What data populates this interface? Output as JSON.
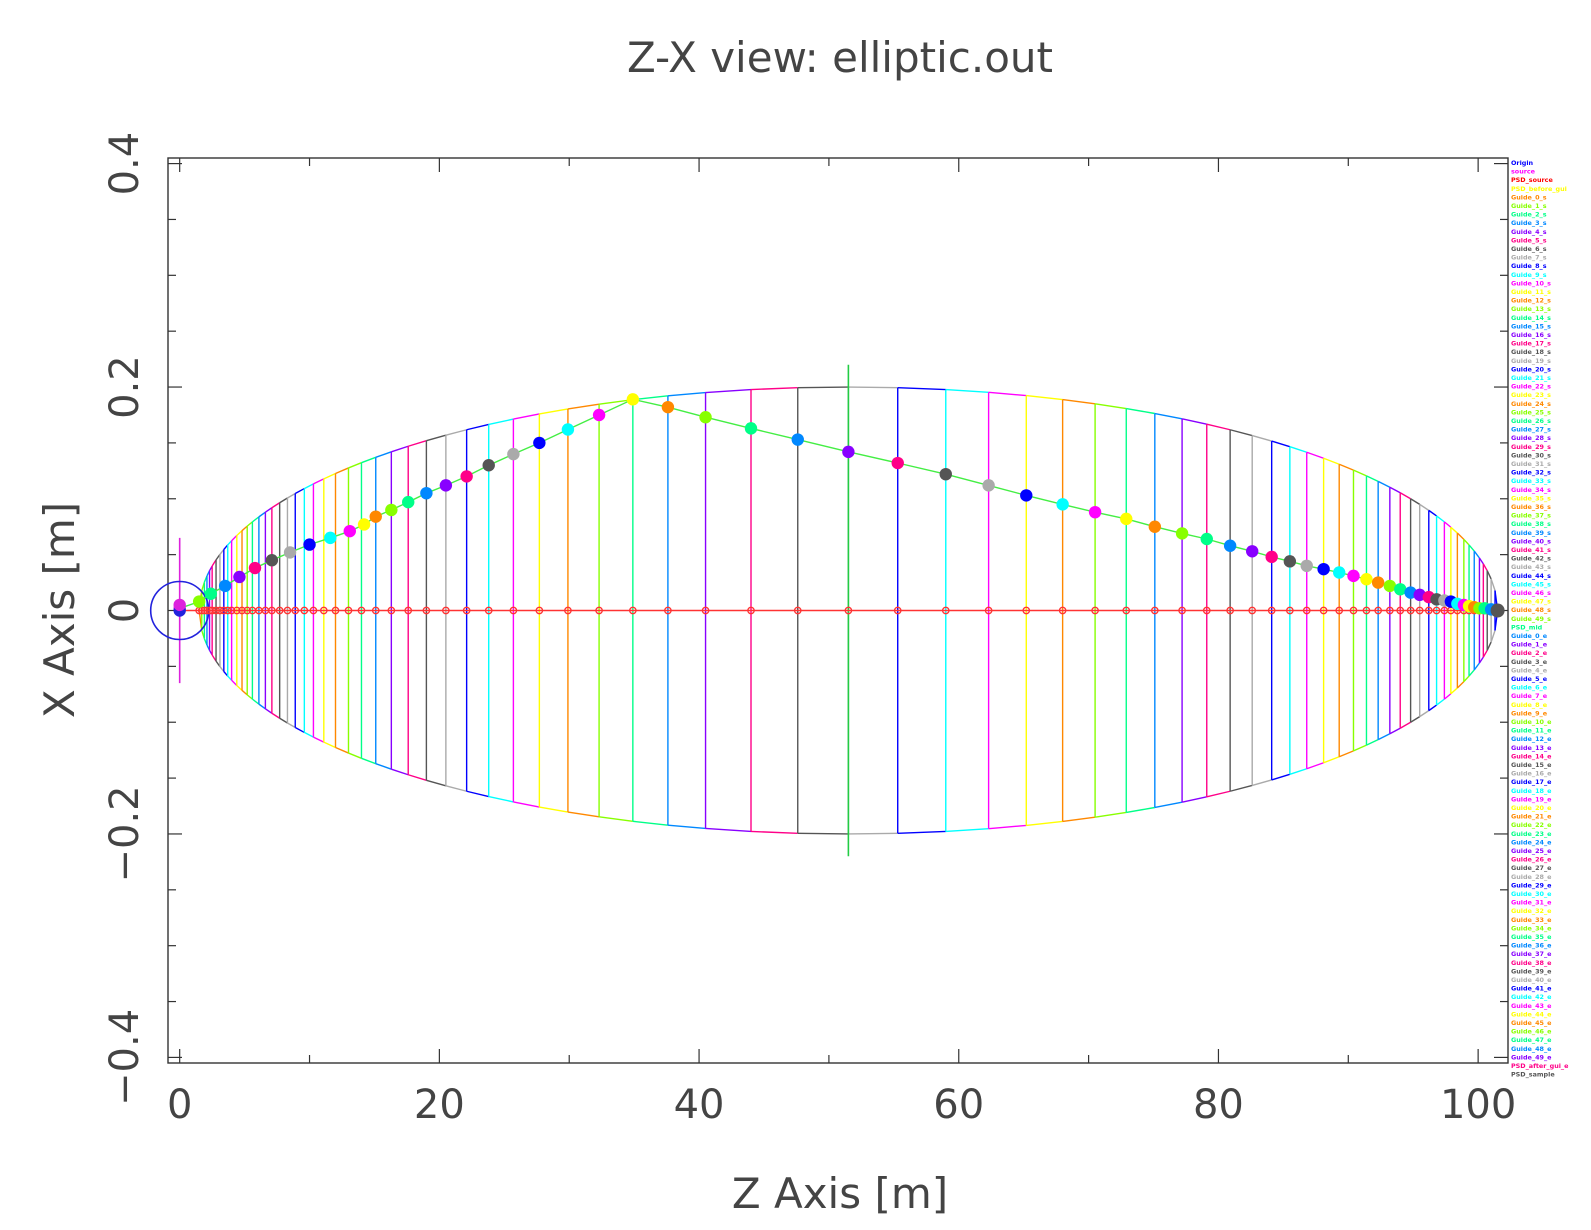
{
  "chart_data": {
    "type": "line",
    "title": "Z-X view: elliptic.out",
    "xlabel": "Z Axis [m]",
    "ylabel": "X Axis [m]",
    "xlim": [
      -0.9,
      102.3
    ],
    "ylim": [
      -0.405,
      0.405
    ],
    "xticks": [
      0,
      20,
      40,
      60,
      80,
      100
    ],
    "yticks": [
      -0.4,
      -0.2,
      0,
      0.2,
      0.4
    ],
    "xtick_labels": [
      "0",
      "20",
      "40",
      "60",
      "80",
      "100"
    ],
    "ytick_labels": [
      "−0.4",
      "−0.2",
      "0",
      "0.2",
      "0.4"
    ],
    "grid": false,
    "legend_placement": "right",
    "ellipse": {
      "z_start": 1.5,
      "z_end": 101.5,
      "semi_axis_x": 0.2
    },
    "segment_z_positions": [
      1.5,
      1.7,
      1.9,
      2.1,
      2.3,
      2.5,
      2.8,
      3.1,
      3.4,
      3.7,
      4.0,
      4.4,
      4.8,
      5.2,
      5.6,
      6.1,
      6.6,
      7.1,
      7.7,
      8.3,
      8.9,
      9.6,
      10.3,
      11.1,
      12.0,
      13.0,
      14.0,
      15.1,
      16.3,
      17.6,
      19.0,
      20.5,
      22.1,
      23.8,
      25.7,
      27.7,
      29.9,
      32.3,
      34.9,
      37.6,
      40.5,
      44.0,
      47.6,
      51.5,
      55.3,
      59.0,
      62.3,
      65.2,
      68.0,
      70.5,
      72.9,
      75.1,
      77.2,
      79.1,
      80.9,
      82.6,
      84.1,
      85.5,
      86.8,
      88.1,
      89.3,
      90.4,
      91.4,
      92.3,
      93.2,
      94.0,
      94.8,
      95.5,
      96.2,
      96.8,
      97.4,
      97.9,
      98.4,
      98.9,
      99.3,
      99.7,
      100.1,
      100.4,
      100.7,
      101.0,
      101.3,
      101.5
    ],
    "series": [
      {
        "name": "",
        "color": "#44ee44",
        "points": [
          [
            0.0,
            0.002
          ],
          [
            1.5,
            0.008
          ],
          [
            2.4,
            0.015
          ],
          [
            3.5,
            0.022
          ],
          [
            4.6,
            0.03
          ],
          [
            5.8,
            0.038
          ],
          [
            7.1,
            0.045
          ],
          [
            8.5,
            0.052
          ],
          [
            10.0,
            0.059
          ],
          [
            11.6,
            0.065
          ],
          [
            13.1,
            0.071
          ],
          [
            14.2,
            0.077
          ],
          [
            15.1,
            0.084
          ],
          [
            16.3,
            0.09
          ],
          [
            17.6,
            0.097
          ],
          [
            19.0,
            0.105
          ],
          [
            20.5,
            0.112
          ],
          [
            22.1,
            0.12
          ],
          [
            23.8,
            0.13
          ],
          [
            25.7,
            0.14
          ],
          [
            27.7,
            0.15
          ],
          [
            29.9,
            0.162
          ],
          [
            32.3,
            0.175
          ],
          [
            34.9,
            0.189
          ],
          [
            37.6,
            0.182
          ],
          [
            40.5,
            0.173
          ],
          [
            44.0,
            0.163
          ],
          [
            47.6,
            0.153
          ],
          [
            51.5,
            0.142
          ],
          [
            55.3,
            0.132
          ],
          [
            59.0,
            0.122
          ],
          [
            62.3,
            0.112
          ],
          [
            65.2,
            0.103
          ],
          [
            68.0,
            0.095
          ],
          [
            70.5,
            0.088
          ],
          [
            72.9,
            0.082
          ],
          [
            75.1,
            0.075
          ],
          [
            77.2,
            0.069
          ],
          [
            79.1,
            0.064
          ],
          [
            80.9,
            0.058
          ],
          [
            82.6,
            0.053
          ],
          [
            84.1,
            0.048
          ],
          [
            85.5,
            0.044
          ],
          [
            86.8,
            0.04
          ],
          [
            88.1,
            0.037
          ],
          [
            89.3,
            0.034
          ],
          [
            90.4,
            0.031
          ],
          [
            91.4,
            0.028
          ],
          [
            92.3,
            0.025
          ],
          [
            93.2,
            0.022
          ],
          [
            94.0,
            0.019
          ],
          [
            94.8,
            0.016
          ],
          [
            95.5,
            0.014
          ],
          [
            96.2,
            0.012
          ],
          [
            96.8,
            0.01
          ],
          [
            97.4,
            0.009
          ],
          [
            97.9,
            0.008
          ],
          [
            98.4,
            0.006
          ],
          [
            98.9,
            0.005
          ],
          [
            99.3,
            0.004
          ],
          [
            99.7,
            0.003
          ],
          [
            100.1,
            0.002
          ],
          [
            100.5,
            0.002
          ],
          [
            101.0,
            0.001
          ],
          [
            101.5,
            0.0
          ]
        ]
      },
      {
        "name": "",
        "color": "#ff3333",
        "points": [
          [
            0.0,
            0.0
          ],
          [
            101.5,
            0.0
          ]
        ]
      }
    ],
    "legend": [
      {
        "label": "Origin",
        "color": "#0000ff"
      },
      {
        "label": "source",
        "color": "#ff00ff"
      },
      {
        "label": "PSD_source",
        "color": "#ff0000"
      },
      {
        "label": "PSD_before_gui",
        "color": "#ffff00"
      },
      {
        "label": "Guide_0_s",
        "color": "#ff8800"
      },
      {
        "label": "Guide_1_s",
        "color": "#88ff00"
      },
      {
        "label": "Guide_2_s",
        "color": "#00ff88"
      },
      {
        "label": "Guide_3_s",
        "color": "#0088ff"
      },
      {
        "label": "Guide_4_s",
        "color": "#8800ff"
      },
      {
        "label": "Guide_5_s",
        "color": "#ff0088"
      },
      {
        "label": "Guide_6_s",
        "color": "#555555"
      },
      {
        "label": "Guide_7_s",
        "color": "#aaaaaa"
      },
      {
        "label": "Guide_8_s",
        "color": "#0000ff"
      },
      {
        "label": "Guide_9_s",
        "color": "#00ffff"
      },
      {
        "label": "Guide_10_s",
        "color": "#ff00ff"
      },
      {
        "label": "Guide_11_s",
        "color": "#ffff00"
      },
      {
        "label": "Guide_12_s",
        "color": "#ff8800"
      },
      {
        "label": "Guide_13_s",
        "color": "#88ff00"
      },
      {
        "label": "Guide_14_s",
        "color": "#00ff88"
      },
      {
        "label": "Guide_15_s",
        "color": "#0088ff"
      },
      {
        "label": "Guide_16_s",
        "color": "#8800ff"
      },
      {
        "label": "Guide_17_s",
        "color": "#ff0088"
      },
      {
        "label": "Guide_18_s",
        "color": "#555555"
      },
      {
        "label": "Guide_19_s",
        "color": "#aaaaaa"
      },
      {
        "label": "Guide_20_s",
        "color": "#0000ff"
      },
      {
        "label": "Guide_21_s",
        "color": "#00ffff"
      },
      {
        "label": "Guide_22_s",
        "color": "#ff00ff"
      },
      {
        "label": "Guide_23_s",
        "color": "#ffff00"
      },
      {
        "label": "Guide_24_s",
        "color": "#ff8800"
      },
      {
        "label": "Guide_25_s",
        "color": "#88ff00"
      },
      {
        "label": "Guide_26_s",
        "color": "#00ff88"
      },
      {
        "label": "Guide_27_s",
        "color": "#0088ff"
      },
      {
        "label": "Guide_28_s",
        "color": "#8800ff"
      },
      {
        "label": "Guide_29_s",
        "color": "#ff0088"
      },
      {
        "label": "Guide_30_s",
        "color": "#555555"
      },
      {
        "label": "Guide_31_s",
        "color": "#aaaaaa"
      },
      {
        "label": "Guide_32_s",
        "color": "#0000ff"
      },
      {
        "label": "Guide_33_s",
        "color": "#00ffff"
      },
      {
        "label": "Guide_34_s",
        "color": "#ff00ff"
      },
      {
        "label": "Guide_35_s",
        "color": "#ffff00"
      },
      {
        "label": "Guide_36_s",
        "color": "#ff8800"
      },
      {
        "label": "Guide_37_s",
        "color": "#88ff00"
      },
      {
        "label": "Guide_38_s",
        "color": "#00ff88"
      },
      {
        "label": "Guide_39_s",
        "color": "#0088ff"
      },
      {
        "label": "Guide_40_s",
        "color": "#8800ff"
      },
      {
        "label": "Guide_41_s",
        "color": "#ff0088"
      },
      {
        "label": "Guide_42_s",
        "color": "#555555"
      },
      {
        "label": "Guide_43_s",
        "color": "#aaaaaa"
      },
      {
        "label": "Guide_44_s",
        "color": "#0000ff"
      },
      {
        "label": "Guide_45_s",
        "color": "#00ffff"
      },
      {
        "label": "Guide_46_s",
        "color": "#ff00ff"
      },
      {
        "label": "Guide_47_s",
        "color": "#ffff00"
      },
      {
        "label": "Guide_48_s",
        "color": "#ff8800"
      },
      {
        "label": "Guide_49_s",
        "color": "#88ff00"
      },
      {
        "label": "PSD_mid",
        "color": "#00ff88"
      },
      {
        "label": "Guide_0_e",
        "color": "#0088ff"
      },
      {
        "label": "Guide_1_e",
        "color": "#8800ff"
      },
      {
        "label": "Guide_2_e",
        "color": "#ff0088"
      },
      {
        "label": "Guide_3_e",
        "color": "#555555"
      },
      {
        "label": "Guide_4_e",
        "color": "#aaaaaa"
      },
      {
        "label": "Guide_5_e",
        "color": "#0000ff"
      },
      {
        "label": "Guide_6_e",
        "color": "#00ffff"
      },
      {
        "label": "Guide_7_e",
        "color": "#ff00ff"
      },
      {
        "label": "Guide_8_e",
        "color": "#ffff00"
      },
      {
        "label": "Guide_9_e",
        "color": "#ff8800"
      },
      {
        "label": "Guide_10_e",
        "color": "#88ff00"
      },
      {
        "label": "Guide_11_e",
        "color": "#00ff88"
      },
      {
        "label": "Guide_12_e",
        "color": "#0088ff"
      },
      {
        "label": "Guide_13_e",
        "color": "#8800ff"
      },
      {
        "label": "Guide_14_e",
        "color": "#ff0088"
      },
      {
        "label": "Guide_15_e",
        "color": "#555555"
      },
      {
        "label": "Guide_16_e",
        "color": "#aaaaaa"
      },
      {
        "label": "Guide_17_e",
        "color": "#0000ff"
      },
      {
        "label": "Guide_18_e",
        "color": "#00ffff"
      },
      {
        "label": "Guide_19_e",
        "color": "#ff00ff"
      },
      {
        "label": "Guide_20_e",
        "color": "#ffff00"
      },
      {
        "label": "Guide_21_e",
        "color": "#ff8800"
      },
      {
        "label": "Guide_22_e",
        "color": "#88ff00"
      },
      {
        "label": "Guide_23_e",
        "color": "#00ff88"
      },
      {
        "label": "Guide_24_e",
        "color": "#0088ff"
      },
      {
        "label": "Guide_25_e",
        "color": "#8800ff"
      },
      {
        "label": "Guide_26_e",
        "color": "#ff0088"
      },
      {
        "label": "Guide_27_e",
        "color": "#555555"
      },
      {
        "label": "Guide_28_e",
        "color": "#aaaaaa"
      },
      {
        "label": "Guide_29_e",
        "color": "#0000ff"
      },
      {
        "label": "Guide_30_e",
        "color": "#00ffff"
      },
      {
        "label": "Guide_31_e",
        "color": "#ff00ff"
      },
      {
        "label": "Guide_32_e",
        "color": "#ffff00"
      },
      {
        "label": "Guide_33_e",
        "color": "#ff8800"
      },
      {
        "label": "Guide_34_e",
        "color": "#88ff00"
      },
      {
        "label": "Guide_35_e",
        "color": "#00ff88"
      },
      {
        "label": "Guide_36_e",
        "color": "#0088ff"
      },
      {
        "label": "Guide_37_e",
        "color": "#8800ff"
      },
      {
        "label": "Guide_38_e",
        "color": "#ff0088"
      },
      {
        "label": "Guide_39_e",
        "color": "#555555"
      },
      {
        "label": "Guide_40_e",
        "color": "#aaaaaa"
      },
      {
        "label": "Guide_41_e",
        "color": "#0000ff"
      },
      {
        "label": "Guide_42_e",
        "color": "#00ffff"
      },
      {
        "label": "Guide_43_e",
        "color": "#ff00ff"
      },
      {
        "label": "Guide_44_e",
        "color": "#ffff00"
      },
      {
        "label": "Guide_45_e",
        "color": "#ff8800"
      },
      {
        "label": "Guide_46_e",
        "color": "#88ff00"
      },
      {
        "label": "Guide_47_e",
        "color": "#00ff88"
      },
      {
        "label": "Guide_48_e",
        "color": "#0088ff"
      },
      {
        "label": "Guide_49_e",
        "color": "#8800ff"
      },
      {
        "label": "PSD_after_gui_e",
        "color": "#ff0088"
      },
      {
        "label": "PSD_sample",
        "color": "#555555"
      }
    ],
    "colors": {
      "axis": "#333333",
      "text": "#444444",
      "beam_line": "#ff3333",
      "origin_marker": "#2222dd",
      "source_marker": "#dd22dd",
      "mid_marker": "#22cc44"
    }
  }
}
